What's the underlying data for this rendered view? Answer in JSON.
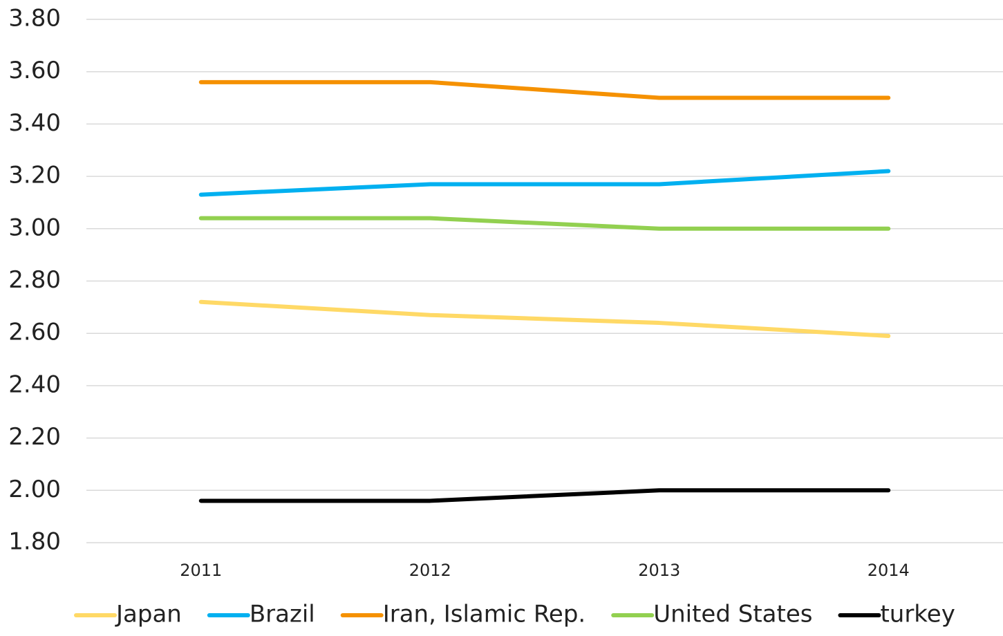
{
  "chart_data": {
    "type": "line",
    "categories": [
      "2011",
      "2012",
      "2013",
      "2014"
    ],
    "series": [
      {
        "name": "Japan",
        "color": "#ffd966",
        "values": [
          2.72,
          2.67,
          2.64,
          2.59
        ]
      },
      {
        "name": "Brazil",
        "color": "#00b0f0",
        "values": [
          3.13,
          3.17,
          3.17,
          3.22
        ]
      },
      {
        "name": "Iran, Islamic Rep.",
        "color": "#f59100",
        "values": [
          3.56,
          3.56,
          3.5,
          3.5
        ]
      },
      {
        "name": "United States",
        "color": "#92d050",
        "values": [
          3.04,
          3.04,
          3.0,
          3.0
        ]
      },
      {
        "name": "turkey",
        "color": "#000000",
        "values": [
          1.96,
          1.96,
          2.0,
          2.0
        ]
      }
    ],
    "ylim": [
      1.8,
      3.8
    ],
    "yticks": [
      {
        "value": 1.8,
        "label": "1.80"
      },
      {
        "value": 2.0,
        "label": "2.00"
      },
      {
        "value": 2.2,
        "label": "2.20"
      },
      {
        "value": 2.4,
        "label": "2.40"
      },
      {
        "value": 2.6,
        "label": "2.60"
      },
      {
        "value": 2.8,
        "label": "2.80"
      },
      {
        "value": 3.0,
        "label": "3.00"
      },
      {
        "value": 3.2,
        "label": "3.20"
      },
      {
        "value": 3.4,
        "label": "3.40"
      },
      {
        "value": 3.6,
        "label": "3.60"
      },
      {
        "value": 3.8,
        "label": "3.80"
      }
    ],
    "grid": true,
    "legend": "bottom"
  }
}
